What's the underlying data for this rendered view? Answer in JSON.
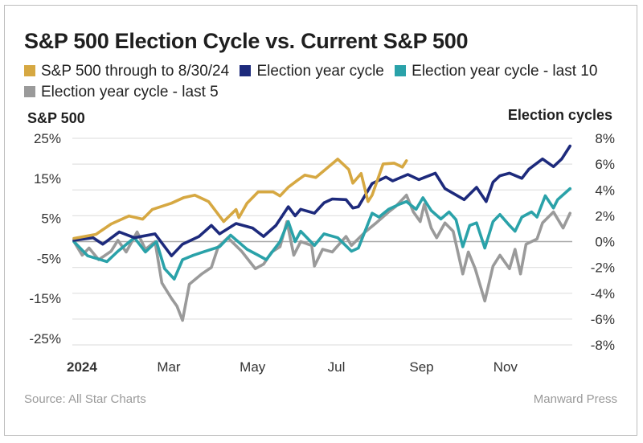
{
  "chart_data": {
    "type": "line",
    "title": "S&P 500 Election Cycle vs. Current S&P 500",
    "ylabel_left": "S&P 500",
    "ylabel_right": "Election cycles",
    "yticks_left": [
      "25%",
      "15%",
      "5%",
      "-5%",
      "-15%",
      "-25%"
    ],
    "yticks_right": [
      "8%",
      "6%",
      "4%",
      "2%",
      "0%",
      "-2%",
      "-4%",
      "-6%",
      "-8%"
    ],
    "ylim_left": [
      -25,
      25
    ],
    "ylim_right": [
      -8,
      8
    ],
    "xlim": [
      "2024-01-01",
      "2024-12-31"
    ],
    "xticks": [
      {
        "label": "2024",
        "date": "2024-01-10",
        "bold": true
      },
      {
        "label": "Mar",
        "date": "2024-03-10"
      },
      {
        "label": "May",
        "date": "2024-05-10"
      },
      {
        "label": "Jul",
        "date": "2024-07-10"
      },
      {
        "label": "Sep",
        "date": "2024-09-10"
      },
      {
        "label": "Nov",
        "date": "2024-11-10"
      }
    ],
    "grid": true,
    "legend_position": "top",
    "series": [
      {
        "name": "S&P 500 through to 8/30/24",
        "axis": "left",
        "color": "#d6a842",
        "points": [
          [
            "2024-01-01",
            0
          ],
          [
            "2024-01-17",
            1
          ],
          [
            "2024-01-28",
            3.6
          ],
          [
            "2024-02-10",
            5.6
          ],
          [
            "2024-02-20",
            4.8
          ],
          [
            "2024-02-27",
            7.2
          ],
          [
            "2024-03-12",
            8.8
          ],
          [
            "2024-03-21",
            10.2
          ],
          [
            "2024-03-29",
            10.8
          ],
          [
            "2024-04-08",
            9.2
          ],
          [
            "2024-04-19",
            4.2
          ],
          [
            "2024-04-28",
            7.2
          ],
          [
            "2024-04-30",
            5.2
          ],
          [
            "2024-05-06",
            8.8
          ],
          [
            "2024-05-14",
            11.6
          ],
          [
            "2024-05-25",
            11.6
          ],
          [
            "2024-05-30",
            10.6
          ],
          [
            "2024-06-05",
            12.8
          ],
          [
            "2024-06-12",
            14.6
          ],
          [
            "2024-06-17",
            15.8
          ],
          [
            "2024-06-25",
            15.2
          ],
          [
            "2024-07-02",
            17.2
          ],
          [
            "2024-07-11",
            19.8
          ],
          [
            "2024-07-19",
            17.2
          ],
          [
            "2024-07-22",
            13.8
          ],
          [
            "2024-07-28",
            16.2
          ],
          [
            "2024-08-02",
            9.2
          ],
          [
            "2024-08-05",
            10.8
          ],
          [
            "2024-08-13",
            18.6
          ],
          [
            "2024-08-21",
            18.8
          ],
          [
            "2024-08-27",
            17.8
          ],
          [
            "2024-08-30",
            19.4
          ]
        ]
      },
      {
        "name": "Election year cycle",
        "axis": "right",
        "color": "#1d2a7c",
        "points": [
          [
            "2024-01-01",
            0.1
          ],
          [
            "2024-01-15",
            0.3
          ],
          [
            "2024-01-22",
            -0.2
          ],
          [
            "2024-02-03",
            0.75
          ],
          [
            "2024-02-14",
            0.3
          ],
          [
            "2024-02-29",
            0.6
          ],
          [
            "2024-03-12",
            -1.1
          ],
          [
            "2024-03-20",
            -0.2
          ],
          [
            "2024-04-01",
            0.4
          ],
          [
            "2024-04-10",
            1.25
          ],
          [
            "2024-04-16",
            0.6
          ],
          [
            "2024-04-28",
            1.4
          ],
          [
            "2024-05-10",
            1.05
          ],
          [
            "2024-05-18",
            0.4
          ],
          [
            "2024-05-27",
            1.25
          ],
          [
            "2024-06-05",
            2.7
          ],
          [
            "2024-06-10",
            2.0
          ],
          [
            "2024-06-14",
            2.5
          ],
          [
            "2024-06-24",
            2.2
          ],
          [
            "2024-07-01",
            3.0
          ],
          [
            "2024-07-07",
            3.3
          ],
          [
            "2024-07-17",
            3.25
          ],
          [
            "2024-07-22",
            2.6
          ],
          [
            "2024-07-26",
            2.7
          ],
          [
            "2024-08-05",
            4.5
          ],
          [
            "2024-08-15",
            5.0
          ],
          [
            "2024-08-20",
            4.7
          ],
          [
            "2024-08-31",
            5.2
          ],
          [
            "2024-09-08",
            4.8
          ],
          [
            "2024-09-20",
            5.3
          ],
          [
            "2024-09-27",
            4.1
          ],
          [
            "2024-10-11",
            3.25
          ],
          [
            "2024-10-20",
            4.2
          ],
          [
            "2024-10-27",
            3.1
          ],
          [
            "2024-11-01",
            4.6
          ],
          [
            "2024-11-06",
            5.1
          ],
          [
            "2024-11-13",
            5.3
          ],
          [
            "2024-11-22",
            4.9
          ],
          [
            "2024-11-27",
            5.6
          ],
          [
            "2024-12-07",
            6.4
          ],
          [
            "2024-12-15",
            5.8
          ],
          [
            "2024-12-21",
            6.4
          ],
          [
            "2024-12-27",
            7.4
          ]
        ]
      },
      {
        "name": "Election year cycle - last 10",
        "axis": "right",
        "color": "#2aa2a9",
        "points": [
          [
            "2024-01-01",
            0
          ],
          [
            "2024-01-11",
            -1.1
          ],
          [
            "2024-01-25",
            -1.55
          ],
          [
            "2024-02-02",
            -0.75
          ],
          [
            "2024-02-14",
            0.3
          ],
          [
            "2024-02-22",
            -0.8
          ],
          [
            "2024-03-01",
            0
          ],
          [
            "2024-03-07",
            -2.1
          ],
          [
            "2024-03-14",
            -2.9
          ],
          [
            "2024-03-20",
            -1.4
          ],
          [
            "2024-03-28",
            -1.05
          ],
          [
            "2024-04-04",
            -0.8
          ],
          [
            "2024-04-16",
            -0.4
          ],
          [
            "2024-04-24",
            0.5
          ],
          [
            "2024-05-06",
            -0.6
          ],
          [
            "2024-05-14",
            -1.05
          ],
          [
            "2024-05-20",
            -1.4
          ],
          [
            "2024-05-30",
            0
          ],
          [
            "2024-06-05",
            1.55
          ],
          [
            "2024-06-10",
            0
          ],
          [
            "2024-06-14",
            0.8
          ],
          [
            "2024-06-24",
            -0.3
          ],
          [
            "2024-07-01",
            0.6
          ],
          [
            "2024-07-11",
            0.3
          ],
          [
            "2024-07-21",
            -0.75
          ],
          [
            "2024-07-26",
            -0.5
          ],
          [
            "2024-08-05",
            2.2
          ],
          [
            "2024-08-10",
            1.9
          ],
          [
            "2024-08-17",
            2.5
          ],
          [
            "2024-08-25",
            2.9
          ],
          [
            "2024-08-30",
            3.1
          ],
          [
            "2024-09-06",
            2.5
          ],
          [
            "2024-09-11",
            3.4
          ],
          [
            "2024-09-17",
            2.4
          ],
          [
            "2024-09-24",
            1.75
          ],
          [
            "2024-09-30",
            2.3
          ],
          [
            "2024-10-05",
            1.7
          ],
          [
            "2024-10-10",
            -0.4
          ],
          [
            "2024-10-15",
            1.25
          ],
          [
            "2024-10-20",
            1.45
          ],
          [
            "2024-10-26",
            -0.5
          ],
          [
            "2024-11-01",
            1.55
          ],
          [
            "2024-11-06",
            2.1
          ],
          [
            "2024-11-13",
            1.25
          ],
          [
            "2024-11-17",
            0.8
          ],
          [
            "2024-11-22",
            1.9
          ],
          [
            "2024-11-29",
            2.3
          ],
          [
            "2024-12-03",
            1.9
          ],
          [
            "2024-12-09",
            3.55
          ],
          [
            "2024-12-15",
            2.6
          ],
          [
            "2024-12-18",
            3.25
          ],
          [
            "2024-12-27",
            4.1
          ]
        ]
      },
      {
        "name": "Election year cycle - last 5",
        "axis": "right",
        "color": "#9a9a9a",
        "points": [
          [
            "2024-01-01",
            0
          ],
          [
            "2024-01-07",
            -1.05
          ],
          [
            "2024-01-12",
            -0.5
          ],
          [
            "2024-01-19",
            -1.4
          ],
          [
            "2024-01-28",
            -0.75
          ],
          [
            "2024-02-02",
            0.1
          ],
          [
            "2024-02-08",
            -0.8
          ],
          [
            "2024-02-16",
            0.75
          ],
          [
            "2024-02-22",
            -0.6
          ],
          [
            "2024-02-29",
            0
          ],
          [
            "2024-03-05",
            -3.2
          ],
          [
            "2024-03-12",
            -4.4
          ],
          [
            "2024-03-16",
            -5.0
          ],
          [
            "2024-03-20",
            -6.1
          ],
          [
            "2024-03-25",
            -3.3
          ],
          [
            "2024-04-03",
            -2.5
          ],
          [
            "2024-04-10",
            -2.0
          ],
          [
            "2024-04-15",
            -0.4
          ],
          [
            "2024-04-22",
            0.3
          ],
          [
            "2024-05-02",
            -0.75
          ],
          [
            "2024-05-12",
            -2.1
          ],
          [
            "2024-05-18",
            -1.75
          ],
          [
            "2024-05-24",
            -0.8
          ],
          [
            "2024-05-30",
            -0.4
          ],
          [
            "2024-06-04",
            1.55
          ],
          [
            "2024-06-09",
            -1.05
          ],
          [
            "2024-06-14",
            0
          ],
          [
            "2024-06-22",
            -0.3
          ],
          [
            "2024-06-24",
            -1.9
          ],
          [
            "2024-06-30",
            -0.6
          ],
          [
            "2024-07-07",
            -0.8
          ],
          [
            "2024-07-17",
            0.4
          ],
          [
            "2024-07-21",
            -0.3
          ],
          [
            "2024-07-31",
            0.75
          ],
          [
            "2024-08-08",
            1.45
          ],
          [
            "2024-08-17",
            2.3
          ],
          [
            "2024-08-22",
            2.7
          ],
          [
            "2024-08-30",
            3.6
          ],
          [
            "2024-09-04",
            2.3
          ],
          [
            "2024-09-09",
            1.55
          ],
          [
            "2024-09-12",
            2.9
          ],
          [
            "2024-09-17",
            1.05
          ],
          [
            "2024-09-21",
            0.3
          ],
          [
            "2024-09-27",
            1.45
          ],
          [
            "2024-10-03",
            0.8
          ],
          [
            "2024-10-10",
            -2.5
          ],
          [
            "2024-10-14",
            -0.8
          ],
          [
            "2024-10-19",
            -2.1
          ],
          [
            "2024-10-26",
            -4.6
          ],
          [
            "2024-11-01",
            -1.9
          ],
          [
            "2024-11-06",
            -1.05
          ],
          [
            "2024-11-13",
            -2.1
          ],
          [
            "2024-11-17",
            -0.6
          ],
          [
            "2024-11-21",
            -2.5
          ],
          [
            "2024-11-25",
            -0.2
          ],
          [
            "2024-12-03",
            0.2
          ],
          [
            "2024-12-07",
            1.45
          ],
          [
            "2024-12-15",
            2.3
          ],
          [
            "2024-12-22",
            1.05
          ],
          [
            "2024-12-27",
            2.2
          ]
        ]
      }
    ]
  },
  "footer": {
    "source": "Source: All Star Charts",
    "publisher": "Manward Press"
  }
}
